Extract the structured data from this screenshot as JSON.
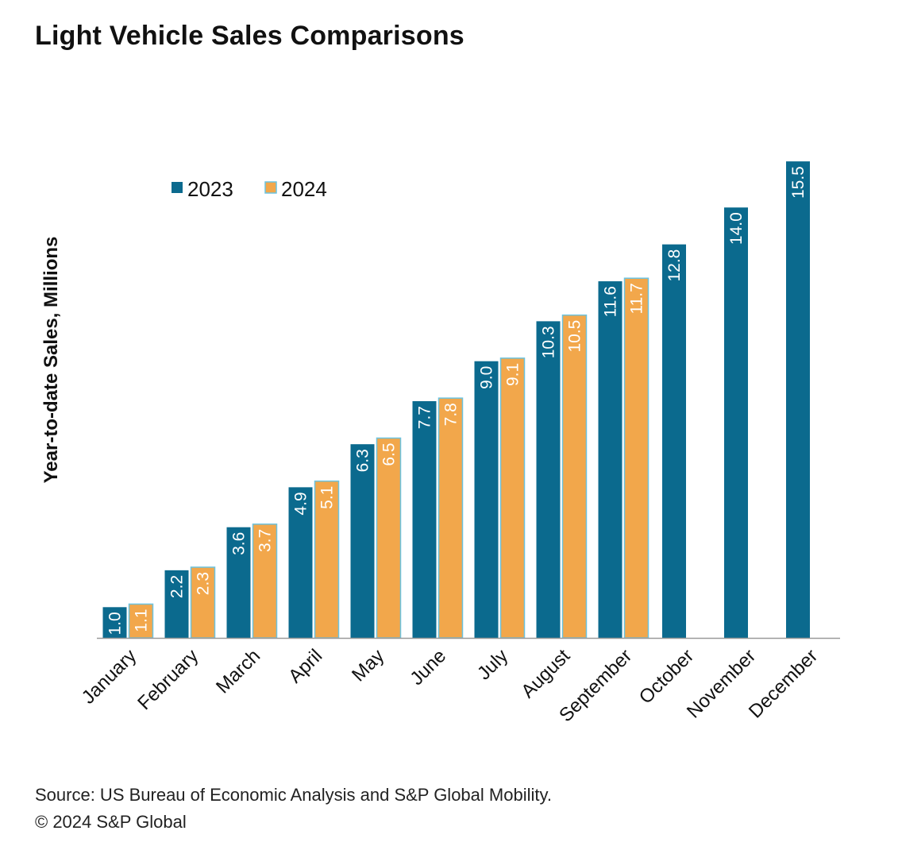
{
  "title": "Light Vehicle Sales Comparisons",
  "footer": {
    "source": "Source: US Bureau of Economic Analysis and S&P Global Mobility.",
    "copyright": "© 2024 S&P Global"
  },
  "colors": {
    "series_2023": "#0b6a8e",
    "series_2024": "#f2a74b",
    "series_2024_edge": "#6cc3df",
    "axis": "#999999",
    "text": "#111111"
  },
  "chart_data": {
    "type": "bar",
    "title": "Light Vehicle Sales Comparisons",
    "xlabel": "",
    "ylabel": "Year-to-date Sales, Millions",
    "ylim": [
      0,
      16
    ],
    "grid": false,
    "legend_position": "top-left",
    "categories": [
      "January",
      "February",
      "March",
      "April",
      "May",
      "June",
      "July",
      "August",
      "September",
      "October",
      "November",
      "December"
    ],
    "series": [
      {
        "name": "2023",
        "color": "#0b6a8e",
        "values": [
          1.0,
          2.2,
          3.6,
          4.9,
          6.3,
          7.7,
          9.0,
          10.3,
          11.6,
          12.8,
          14.0,
          15.5
        ]
      },
      {
        "name": "2024",
        "color": "#f2a74b",
        "values": [
          1.1,
          2.3,
          3.7,
          5.1,
          6.5,
          7.8,
          9.1,
          10.5,
          11.7,
          null,
          null,
          null
        ]
      }
    ]
  }
}
